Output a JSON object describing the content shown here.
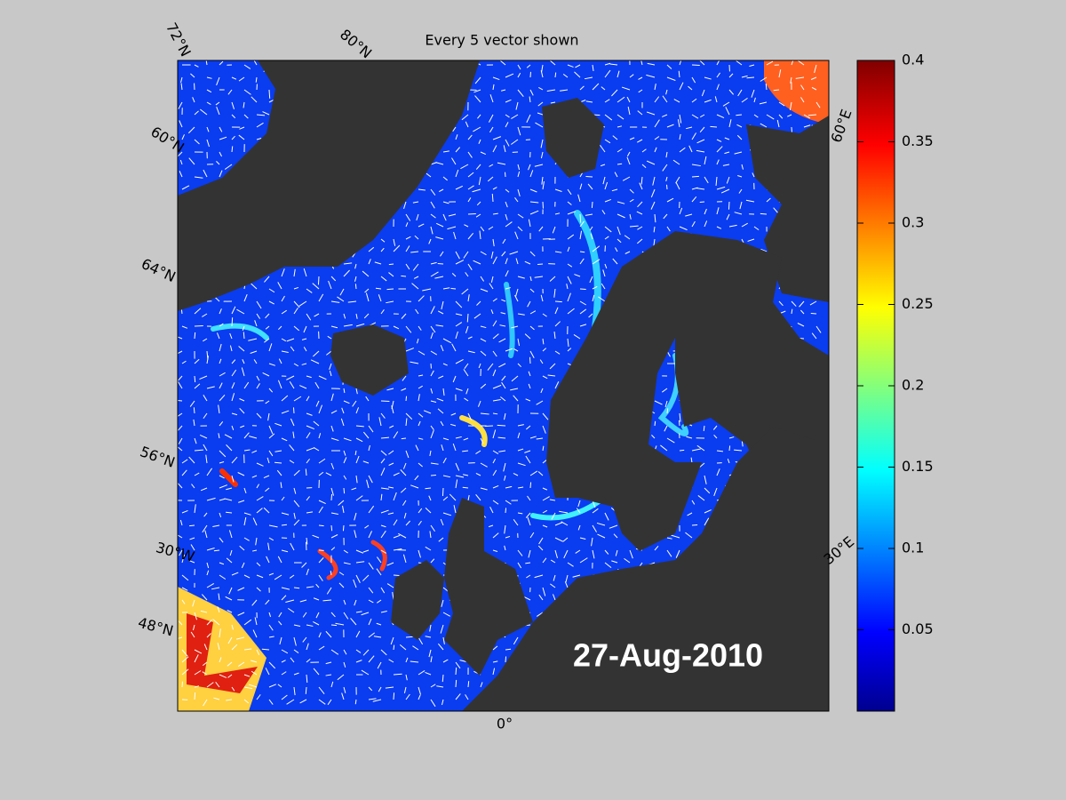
{
  "title": "Every 5 vector shown",
  "date": "27-Aug-2010",
  "grid_labels": [
    "72°N",
    "80°N",
    "60°E",
    "60°N",
    "64°N",
    "56°N",
    "30°W",
    "48°N",
    "0°",
    "30°E"
  ],
  "colorbar": {
    "lim": [
      0,
      0.4
    ],
    "ticks": [
      0.05,
      0.1,
      0.15,
      0.2,
      0.25,
      0.3,
      0.35,
      0.4
    ]
  }
}
